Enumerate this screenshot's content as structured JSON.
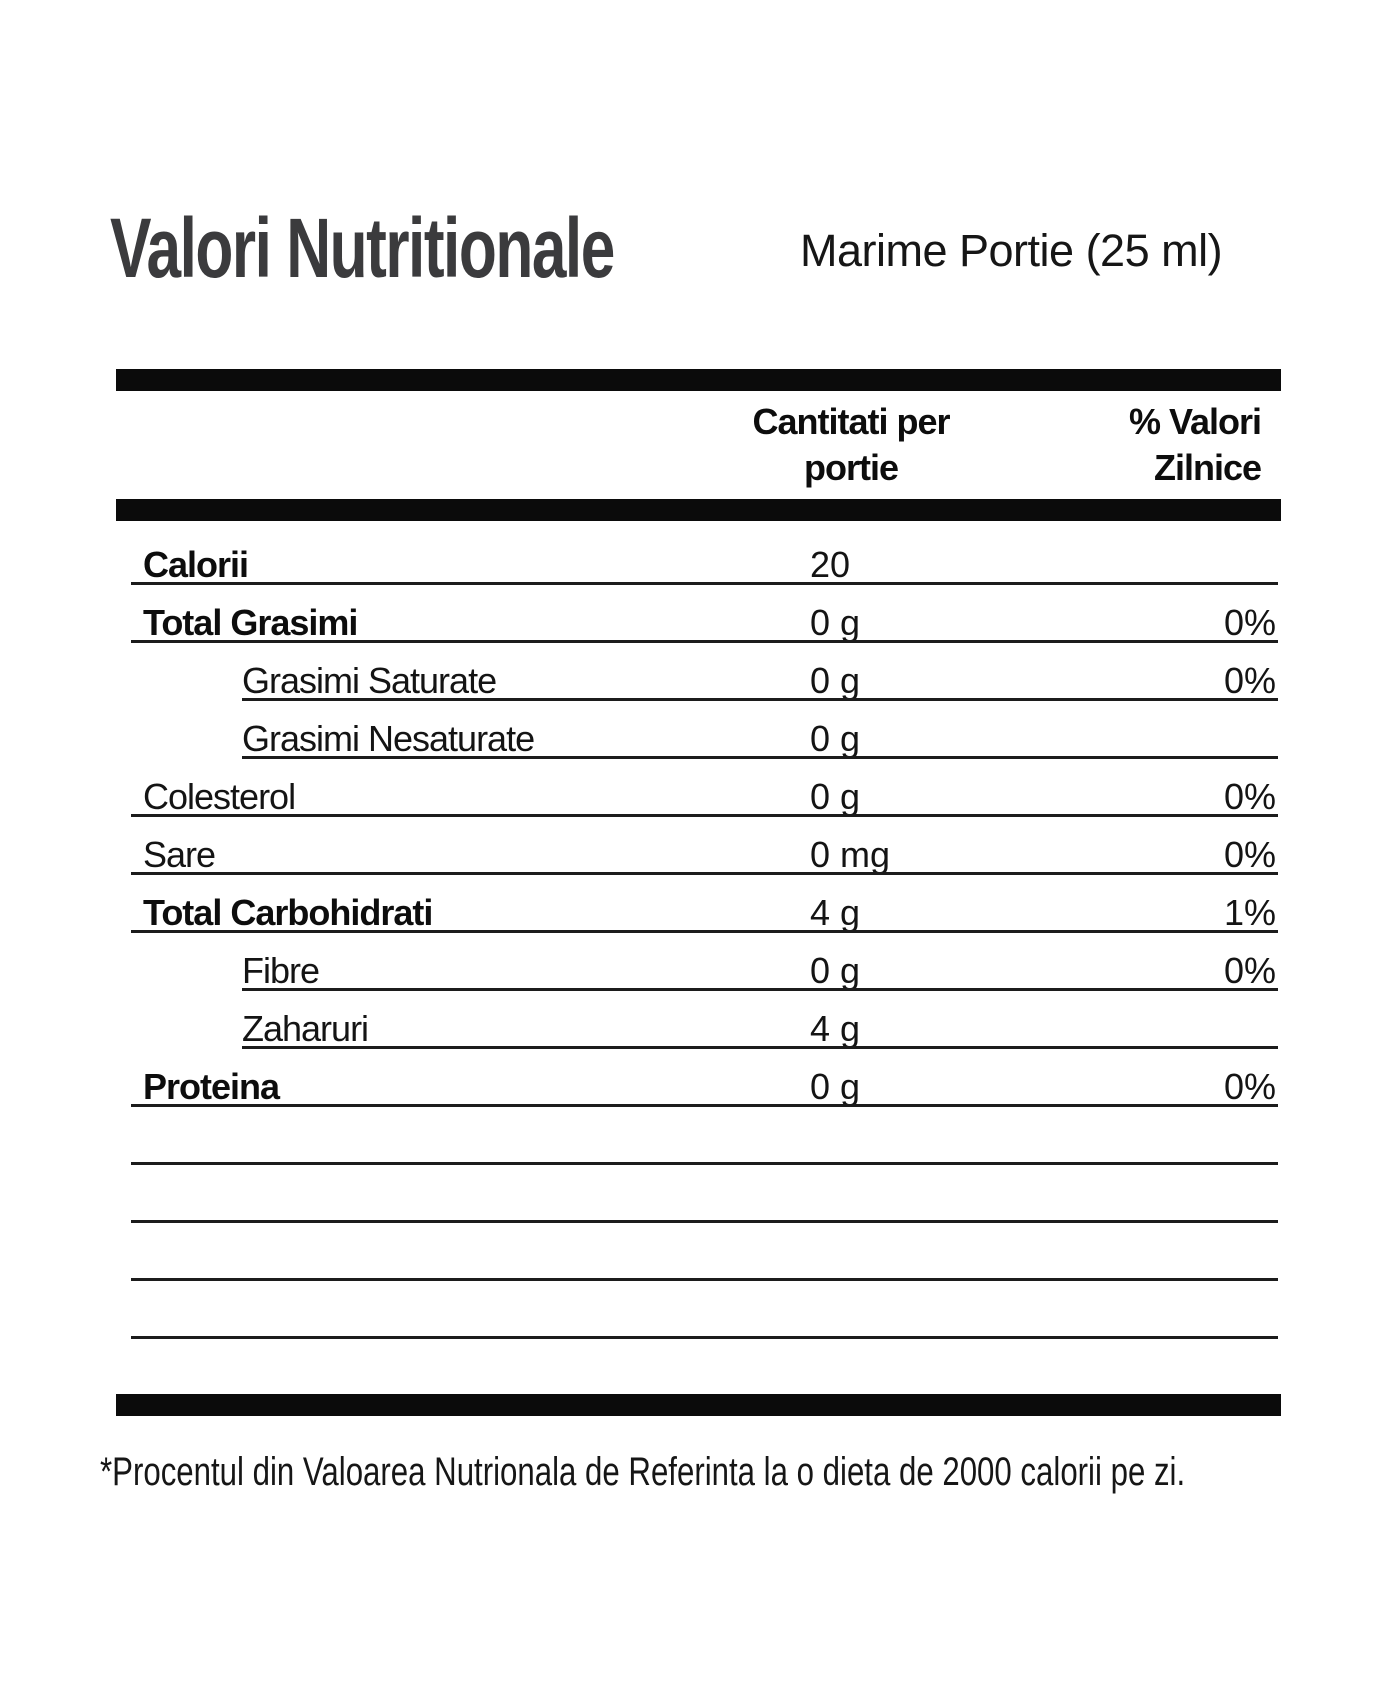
{
  "title": "Valori Nutritionale",
  "serving": "Marime Portie (25 ml)",
  "header": {
    "amount_col_line1": "Cantitati per",
    "amount_col_line2": "portie",
    "dv_col_line1": "% Valori",
    "dv_col_line2": "Zilnice"
  },
  "rows": [
    {
      "label": "Calorii",
      "amount": "20",
      "dv": "",
      "bold": true,
      "indent": false
    },
    {
      "label": "Total Grasimi",
      "amount": "0 g",
      "dv": "0%",
      "bold": true,
      "indent": false
    },
    {
      "label": "Grasimi Saturate",
      "amount": "0 g",
      "dv": "0%",
      "bold": false,
      "indent": true
    },
    {
      "label": "Grasimi Nesaturate",
      "amount": "0 g",
      "dv": "",
      "bold": false,
      "indent": true
    },
    {
      "label": "Colesterol",
      "amount": "0 g",
      "dv": "0%",
      "bold": false,
      "indent": false
    },
    {
      "label": "Sare",
      "amount": "0 mg",
      "dv": "0%",
      "bold": false,
      "indent": false
    },
    {
      "label": "Total Carbohidrati",
      "amount": "4 g",
      "dv": "1%",
      "bold": true,
      "indent": false
    },
    {
      "label": "Fibre",
      "amount": "0 g",
      "dv": "0%",
      "bold": false,
      "indent": true
    },
    {
      "label": "Zaharuri",
      "amount": "4 g",
      "dv": "",
      "bold": false,
      "indent": true
    },
    {
      "label": "Proteina",
      "amount": "0 g",
      "dv": "0%",
      "bold": true,
      "indent": false
    }
  ],
  "empty_row_count": 4,
  "footnote": "*Procentul din Valoarea Nutrionala de Referinta la o dieta de 2000 calorii pe zi.",
  "colors": {
    "title": "#3b3b3d",
    "text": "#141414",
    "bar": "#0b0b0b"
  }
}
